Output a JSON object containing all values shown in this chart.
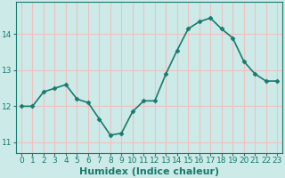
{
  "x": [
    0,
    1,
    2,
    3,
    4,
    5,
    6,
    7,
    8,
    9,
    10,
    11,
    12,
    13,
    14,
    15,
    16,
    17,
    18,
    19,
    20,
    21,
    22,
    23
  ],
  "y": [
    12.0,
    12.0,
    12.4,
    12.5,
    12.6,
    12.2,
    12.1,
    11.65,
    11.2,
    11.25,
    11.85,
    12.15,
    12.15,
    12.9,
    13.55,
    14.15,
    14.35,
    14.45,
    14.15,
    13.9,
    13.25,
    12.9,
    12.7,
    12.7
  ],
  "line_color": "#1a7a6e",
  "marker": "D",
  "marker_size": 2.5,
  "bg_color": "#cceae8",
  "grid_color": "#f0c0c0",
  "xlabel": "Humidex (Indice chaleur)",
  "ylim": [
    10.7,
    14.9
  ],
  "xlim": [
    -0.5,
    23.5
  ],
  "yticks": [
    11,
    12,
    13,
    14
  ],
  "xticks": [
    0,
    1,
    2,
    3,
    4,
    5,
    6,
    7,
    8,
    9,
    10,
    11,
    12,
    13,
    14,
    15,
    16,
    17,
    18,
    19,
    20,
    21,
    22,
    23
  ],
  "tick_fontsize": 6.5,
  "xlabel_fontsize": 8,
  "line_width": 1.2,
  "grid_lw": 0.8,
  "spine_color": "#1a7a6e"
}
